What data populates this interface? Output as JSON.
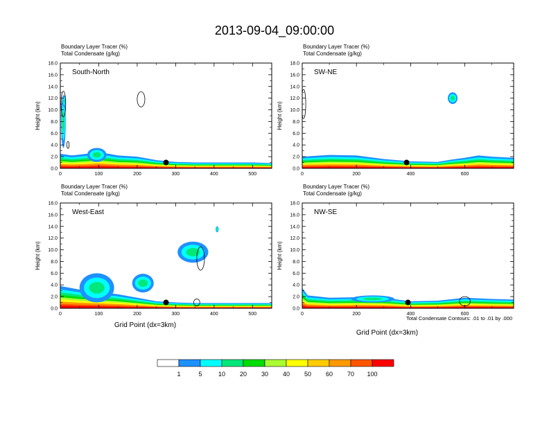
{
  "figure": {
    "title": "2013-09-04_09:00:00",
    "footnote": "Total Condensate Contours: .01 to .01 by .000"
  },
  "colorbar": {
    "labels": [
      "1",
      "5",
      "10",
      "20",
      "30",
      "40",
      "50",
      "60",
      "70",
      "100"
    ],
    "colors": [
      "#ffffff",
      "#1e90ff",
      "#00ffff",
      "#00e87a",
      "#00dd00",
      "#aaff33",
      "#ffff00",
      "#ffcc00",
      "#ff9900",
      "#ff5500",
      "#ff0000"
    ]
  },
  "chart_data": [
    {
      "type": "heatmap",
      "panel": "South-North",
      "title_line1": "Boundary Layer Tracer   (%)",
      "title_line2": "Total Condensate   (g/kg)",
      "ylabel": "Height (km)",
      "xlabel": "",
      "ylim": [
        0,
        18
      ],
      "yticks": [
        "0.0",
        "2.0",
        "4.0",
        "6.0",
        "8.0",
        "10.0",
        "12.0",
        "14.0",
        "16.0",
        "18.0"
      ],
      "xlim": [
        0,
        550
      ],
      "xticks": [
        0,
        100,
        200,
        300,
        400,
        500
      ],
      "marker_x": 275,
      "base_profile": [
        [
          0,
          2.5
        ],
        [
          30,
          2.2
        ],
        [
          70,
          2.5
        ],
        [
          100,
          2.8
        ],
        [
          150,
          2.2
        ],
        [
          200,
          2.0
        ],
        [
          250,
          1.4
        ],
        [
          300,
          1.1
        ],
        [
          350,
          1.0
        ],
        [
          400,
          1.0
        ],
        [
          450,
          1.0
        ],
        [
          500,
          1.0
        ],
        [
          550,
          0.9
        ]
      ],
      "blobs": [
        {
          "x": 8,
          "y": 8,
          "rx": 6,
          "ry": 4.5,
          "level": 1
        },
        {
          "x": 10,
          "y": 11.5,
          "rx": 4,
          "ry": 1,
          "level": 1
        },
        {
          "x": 95,
          "y": 2.3,
          "rx": 25,
          "ry": 1.2,
          "level": 1
        }
      ],
      "contours": [
        {
          "x": 210,
          "y": 11.8,
          "rx": 10,
          "ry": 1.3
        },
        {
          "x": 8,
          "y": 11,
          "rx": 6,
          "ry": 2.2
        },
        {
          "x": 20,
          "y": 4,
          "rx": 3,
          "ry": 0.6
        }
      ]
    },
    {
      "type": "heatmap",
      "panel": "SW-NE",
      "title_line1": "Boundary Layer Tracer   (%)",
      "title_line2": "Total Condensate   (g/kg)",
      "ylabel": "Height (km)",
      "xlabel": "",
      "ylim": [
        0,
        18
      ],
      "yticks": [
        "0.0",
        "2.0",
        "4.0",
        "6.0",
        "8.0",
        "10.0",
        "12.0",
        "14.0",
        "16.0",
        "18.0"
      ],
      "xlim": [
        0,
        780
      ],
      "xticks": [
        0,
        200,
        400,
        600
      ],
      "marker_x": 385,
      "base_profile": [
        [
          0,
          2.0
        ],
        [
          100,
          2.3
        ],
        [
          200,
          2.2
        ],
        [
          300,
          1.6
        ],
        [
          400,
          1.2
        ],
        [
          500,
          1.1
        ],
        [
          550,
          1.5
        ],
        [
          600,
          1.8
        ],
        [
          650,
          2.2
        ],
        [
          700,
          2.0
        ],
        [
          780,
          1.8
        ]
      ],
      "blobs": [
        {
          "x": 555,
          "y": 12,
          "rx": 18,
          "ry": 1,
          "level": 1
        }
      ],
      "contours": [
        {
          "x": 5,
          "y": 11,
          "rx": 8,
          "ry": 2.5
        }
      ]
    },
    {
      "type": "heatmap",
      "panel": "West-East",
      "title_line1": "Boundary Layer Tracer   (%)",
      "title_line2": "Total Condensate   (g/kg)",
      "ylabel": "Height (km)",
      "xlabel": "Grid Point (dx=3km)",
      "ylim": [
        0,
        18
      ],
      "yticks": [
        "0.0",
        "2.0",
        "4.0",
        "6.0",
        "8.0",
        "10.0",
        "12.0",
        "14.0",
        "16.0",
        "18.0"
      ],
      "xlim": [
        0,
        550
      ],
      "xticks": [
        0,
        100,
        200,
        300,
        400,
        500
      ],
      "marker_x": 275,
      "base_profile": [
        [
          0,
          3.8
        ],
        [
          50,
          3.2
        ],
        [
          100,
          2.8
        ],
        [
          150,
          2.4
        ],
        [
          200,
          1.8
        ],
        [
          250,
          1.2
        ],
        [
          300,
          1.0
        ],
        [
          350,
          0.9
        ],
        [
          400,
          0.9
        ],
        [
          450,
          0.9
        ],
        [
          500,
          0.9
        ],
        [
          550,
          0.9
        ]
      ],
      "blobs": [
        {
          "x": 95,
          "y": 3.5,
          "rx": 45,
          "ry": 2.5,
          "level": 1
        },
        {
          "x": 215,
          "y": 4.3,
          "rx": 28,
          "ry": 1.6,
          "level": 1
        },
        {
          "x": 345,
          "y": 9.6,
          "rx": 40,
          "ry": 1.8,
          "level": 1
        },
        {
          "x": 408,
          "y": 13.5,
          "rx": 4,
          "ry": 0.5,
          "level": 1
        }
      ],
      "contours": [
        {
          "x": 365,
          "y": 8.5,
          "rx": 10,
          "ry": 2
        },
        {
          "x": 355,
          "y": 1.0,
          "rx": 8,
          "ry": 0.6
        }
      ]
    },
    {
      "type": "heatmap",
      "panel": "NW-SE",
      "title_line1": "Boundary Layer Tracer   (%)",
      "title_line2": "Total Condensate   (g/kg)",
      "ylabel": "Height (km)",
      "xlabel": "Grid Point (dx=3km)",
      "ylim": [
        0,
        18
      ],
      "yticks": [
        "0.0",
        "2.0",
        "4.0",
        "6.0",
        "8.0",
        "10.0",
        "12.0",
        "14.0",
        "16.0",
        "18.0"
      ],
      "xlim": [
        0,
        780
      ],
      "xticks": [
        0,
        200,
        400,
        600
      ],
      "marker_x": 390,
      "base_profile": [
        [
          0,
          3.5
        ],
        [
          20,
          2.2
        ],
        [
          100,
          1.8
        ],
        [
          200,
          1.9
        ],
        [
          300,
          1.8
        ],
        [
          400,
          1.2
        ],
        [
          500,
          1.3
        ],
        [
          600,
          1.8
        ],
        [
          700,
          1.6
        ],
        [
          780,
          1.5
        ]
      ],
      "blobs": [
        {
          "x": 260,
          "y": 1.6,
          "rx": 80,
          "ry": 0.6,
          "level": 1
        }
      ],
      "contours": [
        {
          "x": 600,
          "y": 1.2,
          "rx": 20,
          "ry": 0.8
        }
      ]
    }
  ]
}
